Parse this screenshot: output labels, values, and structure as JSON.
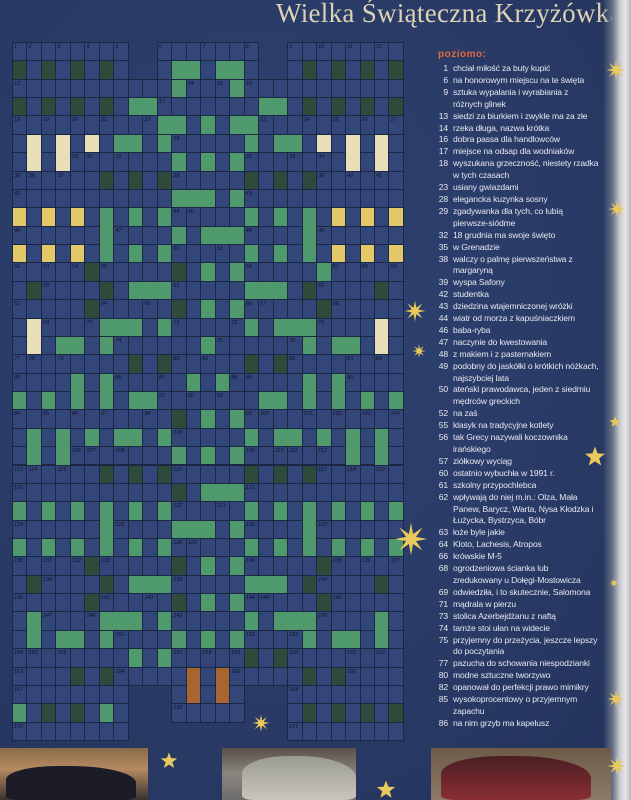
{
  "title": "Wielka Świąteczna Krzyżówka",
  "colors": {
    "background": "#2b3d6b",
    "cell": "#33467a",
    "green_light": "#4f9a6c",
    "green_dark": "#2e4a3a",
    "yellow": "#e3c86a",
    "cream": "#e8dfb8",
    "brown": "#a9652f",
    "heading": "#e2683a",
    "star": "#e8c95c"
  },
  "clues": {
    "heading": "poziomo:",
    "items": [
      {
        "n": "1",
        "text": "chciał miłość za buty kupić"
      },
      {
        "n": "6",
        "text": "na honorowym miejscu na te święta"
      },
      {
        "n": "9",
        "text": "sztuka wypalania i wyrabiania z różnych glinek"
      },
      {
        "n": "13",
        "text": "siedzi za biurkiem i zwykle ma za złe"
      },
      {
        "n": "14",
        "text": "rzeka długa, nazwa krótka"
      },
      {
        "n": "16",
        "text": "dobra passa dla handlowców"
      },
      {
        "n": "17",
        "text": "miejsce na odsap dla wodniaków"
      },
      {
        "n": "18",
        "text": "wyszukana grzeczność, niestety rzadka w tych czasach"
      },
      {
        "n": "23",
        "text": "usiany gwiazdami"
      },
      {
        "n": "28",
        "text": "elegancka kuzynka sosny"
      },
      {
        "n": "29",
        "text": "zgadywanka dla tych, co lubią pierwsze-siódme"
      },
      {
        "n": "32",
        "text": "18 grudnia ma swoje święto"
      },
      {
        "n": "35",
        "text": "w Grenadzie"
      },
      {
        "n": "38",
        "text": "walczy o palmę pierwszeństwa z margaryną"
      },
      {
        "n": "39",
        "text": "wyspa Safony"
      },
      {
        "n": "42",
        "text": "studentka"
      },
      {
        "n": "43",
        "text": "dziedzina wtajemniczonej wróżki"
      },
      {
        "n": "44",
        "text": "wiatr od morza z kapuśniaczkiem"
      },
      {
        "n": "46",
        "text": "baba-ryba"
      },
      {
        "n": "47",
        "text": "naczynie do kwestowania"
      },
      {
        "n": "48",
        "text": "z makiem i z pasternakiem"
      },
      {
        "n": "49",
        "text": "podobny do jaskółki o krótkich nóżkach, najszybciej lata"
      },
      {
        "n": "50",
        "text": "ateński prawodawca, jeden z siedmiu mędrców greckich"
      },
      {
        "n": "52",
        "text": "na zaś"
      },
      {
        "n": "55",
        "text": "klasyk na tradycyjne kotlety"
      },
      {
        "n": "56",
        "text": "tak Grecy nazywali koczownika irańskiego"
      },
      {
        "n": "57",
        "text": "ziółkowy wyciąg"
      },
      {
        "n": "60",
        "text": "ostatnio wybuchła w 1991 r."
      },
      {
        "n": "61",
        "text": "szkolny przypochlebca"
      },
      {
        "n": "62",
        "text": "wpływają do niej m.in.: Olza, Mała Panew, Barycz, Warta, Nysa Kłodzka i Łużycka, Bystrzyca, Bóbr"
      },
      {
        "n": "63",
        "text": "łoże byle jakie"
      },
      {
        "n": "64",
        "text": "Kloto, Lachesis, Atropos"
      },
      {
        "n": "66",
        "text": "krówskie M-5"
      },
      {
        "n": "68",
        "text": "ogrodzeniowa ścianka lub zredukowany u Dołęgi-Mostowicza"
      },
      {
        "n": "69",
        "text": "odwiedziła, i to skutecznie, Salomona"
      },
      {
        "n": "71",
        "text": "mądrala w pierzu"
      },
      {
        "n": "73",
        "text": "stolica Azerbejdżanu z naftą"
      },
      {
        "n": "74",
        "text": "tamże stoi ułan na widecie"
      },
      {
        "n": "75",
        "text": "przyjemny do przeżycia, jeszcze lepszy do poczytania"
      },
      {
        "n": "77",
        "text": "pazucha do schowania niespodzianki"
      },
      {
        "n": "80",
        "text": "modne sztuczne tworzywo"
      },
      {
        "n": "82",
        "text": "opanował do perfekcji prawo mimikry"
      },
      {
        "n": "85",
        "text": "wysokoprocentowy o przyjemnym zapachu"
      },
      {
        "n": "86",
        "text": "na nim grzyb ma kapelusz"
      }
    ]
  },
  "grid": {
    "numbers": [
      "1",
      "2",
      "3",
      "4",
      "5",
      "6",
      "7",
      "8",
      "9",
      "10",
      "11",
      "12",
      "13",
      "14",
      "15",
      "16",
      "17",
      "18",
      "19",
      "20",
      "21",
      "22",
      "23",
      "24",
      "25",
      "26",
      "27",
      "28",
      "29",
      "30",
      "31",
      "32",
      "33",
      "34",
      "35",
      "36",
      "37",
      "38",
      "39",
      "40",
      "41",
      "42",
      "43",
      "44",
      "45",
      "46",
      "47",
      "48",
      "49",
      "50",
      "51",
      "52",
      "53",
      "54",
      "55",
      "56",
      "57",
      "58",
      "59",
      "60",
      "61",
      "62",
      "63",
      "64",
      "65",
      "66",
      "67",
      "68",
      "69",
      "70",
      "71",
      "72",
      "73",
      "74",
      "75",
      "76",
      "77",
      "78",
      "79",
      "80",
      "81",
      "82",
      "83",
      "84",
      "85",
      "86",
      "87",
      "88",
      "89",
      "90",
      "91",
      "92",
      "93",
      "94",
      "95",
      "96",
      "97",
      "98",
      "99",
      "100",
      "101",
      "102",
      "103",
      "104",
      "105",
      "106",
      "107",
      "108",
      "109",
      "110",
      "111",
      "112",
      "113",
      "114",
      "115",
      "116",
      "117",
      "118",
      "119",
      "120",
      "121",
      "122",
      "123",
      "124",
      "125",
      "126",
      "127",
      "128",
      "129",
      "130",
      "131",
      "132",
      "133",
      "134",
      "135",
      "136",
      "137",
      "138",
      "139",
      "140",
      "141",
      "142",
      "143",
      "144",
      "145",
      "146",
      "147",
      "148",
      "149",
      "150",
      "151",
      "152",
      "153",
      "154",
      "155",
      "156",
      "157",
      "158",
      "159",
      "160",
      "161",
      "162",
      "163",
      "164",
      "165",
      "166",
      "167",
      "168",
      "169",
      "170",
      "171"
    ]
  }
}
